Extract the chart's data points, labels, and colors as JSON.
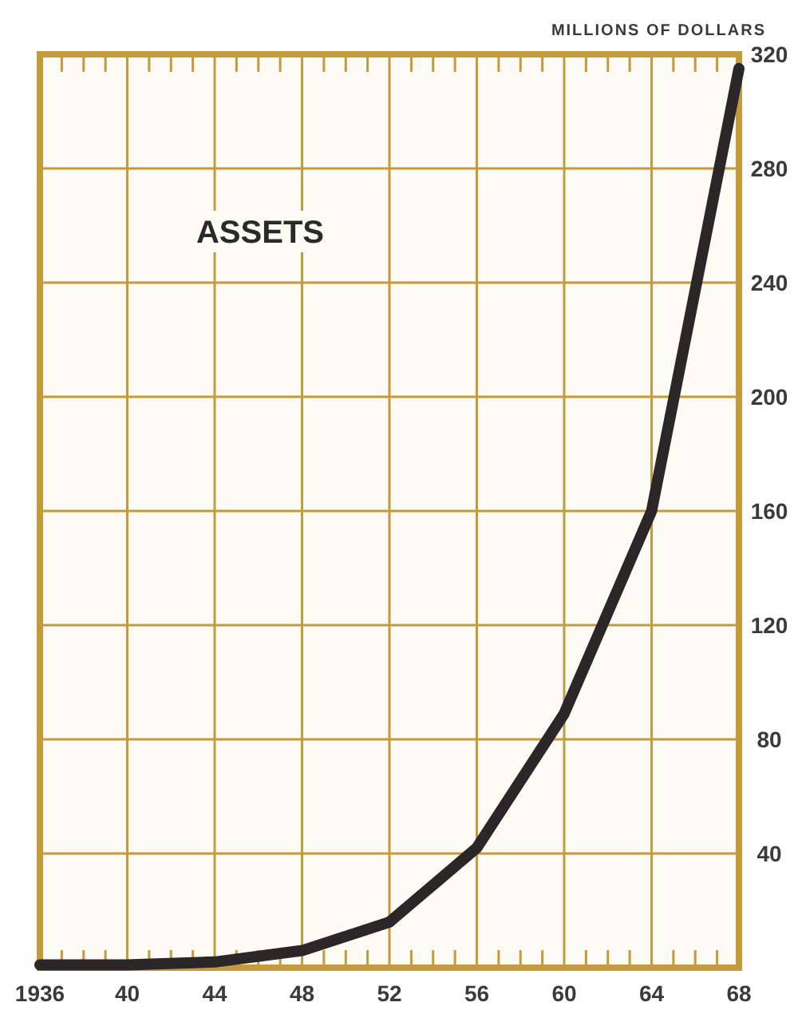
{
  "chart_data": {
    "type": "line",
    "title": "ASSETS",
    "ylabel": "MILLIONS OF DOLLARS",
    "x": [
      1936,
      1940,
      1944,
      1948,
      1952,
      1956,
      1960,
      1964,
      1968
    ],
    "series": [
      {
        "color": "#2b2729",
        "values": [
          1,
          1,
          2,
          6,
          16,
          42,
          89,
          160,
          315
        ]
      }
    ],
    "xlim": [
      1936,
      1968
    ],
    "xticks": [
      {
        "value": 1936,
        "label": "1936"
      },
      {
        "value": 1937,
        "label": null
      },
      {
        "value": 1938,
        "label": null
      },
      {
        "value": 1939,
        "label": null
      },
      {
        "value": 1940,
        "label": "40"
      },
      {
        "value": 1941,
        "label": null
      },
      {
        "value": 1942,
        "label": null
      },
      {
        "value": 1943,
        "label": null
      },
      {
        "value": 1944,
        "label": "44"
      },
      {
        "value": 1945,
        "label": null
      },
      {
        "value": 1946,
        "label": null
      },
      {
        "value": 1947,
        "label": null
      },
      {
        "value": 1948,
        "label": "48"
      },
      {
        "value": 1949,
        "label": null
      },
      {
        "value": 1950,
        "label": null
      },
      {
        "value": 1951,
        "label": null
      },
      {
        "value": 1952,
        "label": "52"
      },
      {
        "value": 1953,
        "label": null
      },
      {
        "value": 1954,
        "label": null
      },
      {
        "value": 1955,
        "label": null
      },
      {
        "value": 1956,
        "label": "56"
      },
      {
        "value": 1957,
        "label": null
      },
      {
        "value": 1958,
        "label": null
      },
      {
        "value": 1959,
        "label": null
      },
      {
        "value": 1960,
        "label": "60"
      },
      {
        "value": 1961,
        "label": null
      },
      {
        "value": 1962,
        "label": null
      },
      {
        "value": 1963,
        "label": null
      },
      {
        "value": 1964,
        "label": "64"
      },
      {
        "value": 1965,
        "label": null
      },
      {
        "value": 1966,
        "label": null
      },
      {
        "value": 1967,
        "label": null
      },
      {
        "value": 1968,
        "label": "68"
      }
    ],
    "ylim": [
      0,
      320
    ],
    "yticks": [
      40,
      80,
      120,
      160,
      200,
      240,
      280,
      320
    ],
    "grid": true,
    "marker": "none",
    "line_style": "solid"
  }
}
